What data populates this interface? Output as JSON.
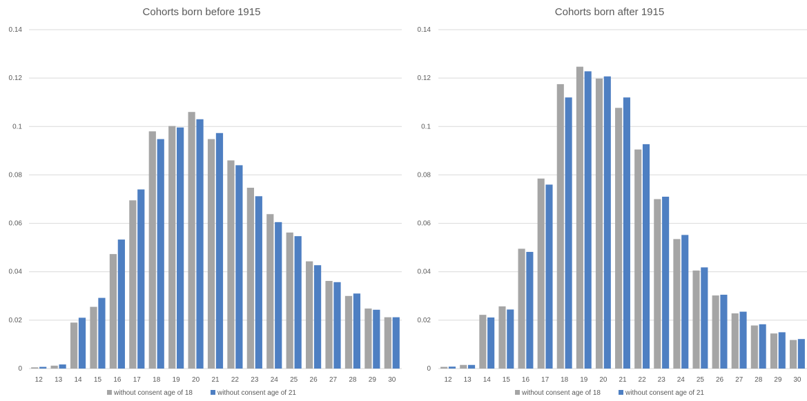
{
  "colors": {
    "series1": "#a5a5a5",
    "series2": "#4e7fc2",
    "grid": "#d9d9d9",
    "text": "#595959"
  },
  "chart_data": [
    {
      "type": "bar",
      "title": "Cohorts born before 1915",
      "xlabel": "",
      "ylabel": "",
      "ylim": [
        0,
        0.14
      ],
      "yticks": [
        0,
        0.02,
        0.04,
        0.06,
        0.08,
        0.1,
        0.12,
        0.14
      ],
      "ytick_labels": [
        "0",
        "0.02",
        "0.04",
        "0.06",
        "0.08",
        "0.1",
        "0.12",
        "0.14"
      ],
      "grid": true,
      "legend_position": "bottom",
      "categories": [
        "12",
        "13",
        "14",
        "15",
        "16",
        "17",
        "18",
        "19",
        "20",
        "21",
        "22",
        "23",
        "24",
        "25",
        "26",
        "27",
        "28",
        "29",
        "30"
      ],
      "series": [
        {
          "name": "without consent age of 18",
          "values": [
            0.0005,
            0.0012,
            0.019,
            0.0255,
            0.0473,
            0.0695,
            0.098,
            0.1002,
            0.106,
            0.0948,
            0.086,
            0.0747,
            0.0638,
            0.0562,
            0.0443,
            0.0362,
            0.03,
            0.0248,
            0.0212
          ]
        },
        {
          "name": "without consent age of 21",
          "values": [
            0.0007,
            0.0017,
            0.021,
            0.0292,
            0.0533,
            0.074,
            0.0948,
            0.0996,
            0.103,
            0.0973,
            0.084,
            0.0712,
            0.0605,
            0.0547,
            0.0427,
            0.0357,
            0.031,
            0.0243,
            0.0212
          ]
        }
      ]
    },
    {
      "type": "bar",
      "title": "Cohorts born after 1915",
      "xlabel": "",
      "ylabel": "",
      "ylim": [
        0,
        0.14
      ],
      "yticks": [
        0,
        0.02,
        0.04,
        0.06,
        0.08,
        0.1,
        0.12,
        0.14
      ],
      "ytick_labels": [
        "0",
        "0.02",
        "0.04",
        "0.06",
        "0.08",
        "0.1",
        "0.12",
        "0.14"
      ],
      "grid": true,
      "legend_position": "bottom",
      "categories": [
        "12",
        "13",
        "14",
        "15",
        "16",
        "17",
        "18",
        "19",
        "20",
        "21",
        "22",
        "23",
        "24",
        "25",
        "26",
        "27",
        "28",
        "29",
        "30"
      ],
      "series": [
        {
          "name": "without consent age of 18",
          "values": [
            0.0007,
            0.0015,
            0.0222,
            0.0257,
            0.0495,
            0.0785,
            0.1175,
            0.1247,
            0.1198,
            0.1077,
            0.0905,
            0.07,
            0.0535,
            0.0405,
            0.0302,
            0.0228,
            0.0178,
            0.0145,
            0.0118
          ]
        },
        {
          "name": "without consent age of 21",
          "values": [
            0.0008,
            0.0015,
            0.0211,
            0.0244,
            0.0482,
            0.076,
            0.112,
            0.1228,
            0.1207,
            0.112,
            0.0927,
            0.071,
            0.0552,
            0.0418,
            0.0305,
            0.0235,
            0.0183,
            0.015,
            0.0122
          ]
        }
      ]
    }
  ]
}
